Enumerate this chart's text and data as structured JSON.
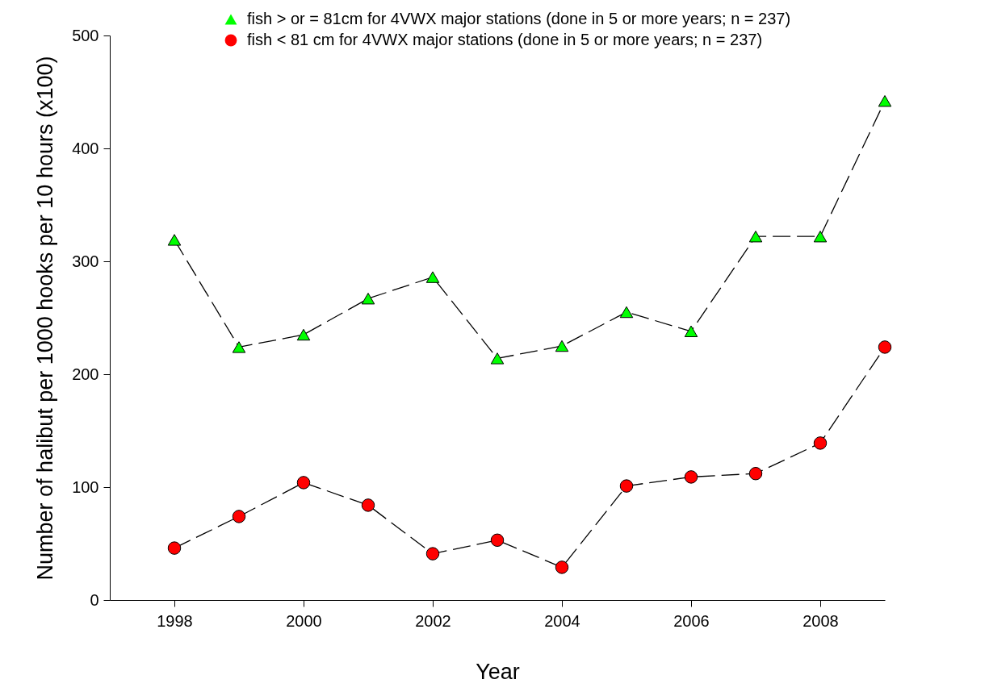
{
  "chart_data": {
    "type": "line",
    "xlabel": "Year",
    "ylabel": "Number of halibut per 1000 hooks per 10 hours (x100)",
    "x": [
      1998,
      1999,
      2000,
      2001,
      2002,
      2003,
      2004,
      2005,
      2006,
      2007,
      2008,
      2009
    ],
    "xlim": [
      1997,
      2009
    ],
    "xticks": [
      1998,
      2000,
      2002,
      2004,
      2006,
      2008
    ],
    "ylim": [
      0,
      500
    ],
    "yticks": [
      0,
      100,
      200,
      300,
      400,
      500
    ],
    "grid": false,
    "legend": "top",
    "line_style": "dashed",
    "series": [
      {
        "name": "fish > or = 81cm for 4VWX major stations (done in 5 or more years; n = 237)",
        "color": "#00ff00",
        "marker": "triangle",
        "values": [
          319,
          224,
          235,
          267,
          286,
          214,
          225,
          255,
          238,
          322,
          322,
          442
        ]
      },
      {
        "name": "fish < 81 cm for 4VWX major stations (done in 5 or more years; n = 237)",
        "color": "#ff0000",
        "marker": "circle",
        "values": [
          46,
          74,
          104,
          84,
          41,
          53,
          29,
          101,
          109,
          112,
          139,
          224
        ]
      }
    ]
  }
}
